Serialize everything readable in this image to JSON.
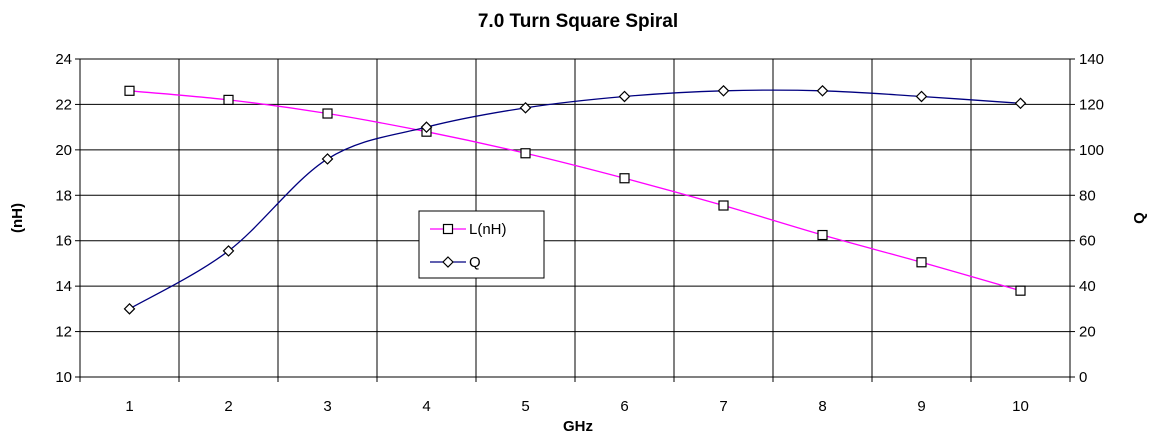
{
  "chart_data": {
    "type": "line",
    "title": "7.0 Turn Square Spiral",
    "xlabel": "GHz",
    "ylabel_left": "(nH)",
    "ylabel_right": "Q",
    "x": [
      1,
      2,
      3,
      4,
      5,
      6,
      7,
      8,
      9,
      10
    ],
    "x_ticks": [
      "1",
      "2",
      "3",
      "4",
      "5",
      "6",
      "7",
      "8",
      "9",
      "10"
    ],
    "y_left_range": [
      10,
      24
    ],
    "y_left_ticks": [
      "10",
      "12",
      "14",
      "16",
      "18",
      "20",
      "22",
      "24"
    ],
    "y_right_range": [
      0,
      140
    ],
    "y_right_ticks": [
      "0",
      "20",
      "40",
      "60",
      "80",
      "100",
      "120",
      "140"
    ],
    "grid": true,
    "legend_position": "center-left",
    "series": [
      {
        "name": "L(nH)",
        "axis": "left",
        "marker": "square",
        "color": "#ff00ff",
        "values": [
          22.6,
          22.2,
          21.6,
          20.8,
          19.85,
          18.75,
          17.55,
          16.25,
          15.05,
          13.8
        ]
      },
      {
        "name": "Q",
        "axis": "right",
        "marker": "diamond",
        "color": "#000080",
        "values": [
          30,
          55.5,
          96,
          110,
          118.5,
          123.5,
          126,
          126,
          123.5,
          120.5
        ]
      }
    ]
  }
}
